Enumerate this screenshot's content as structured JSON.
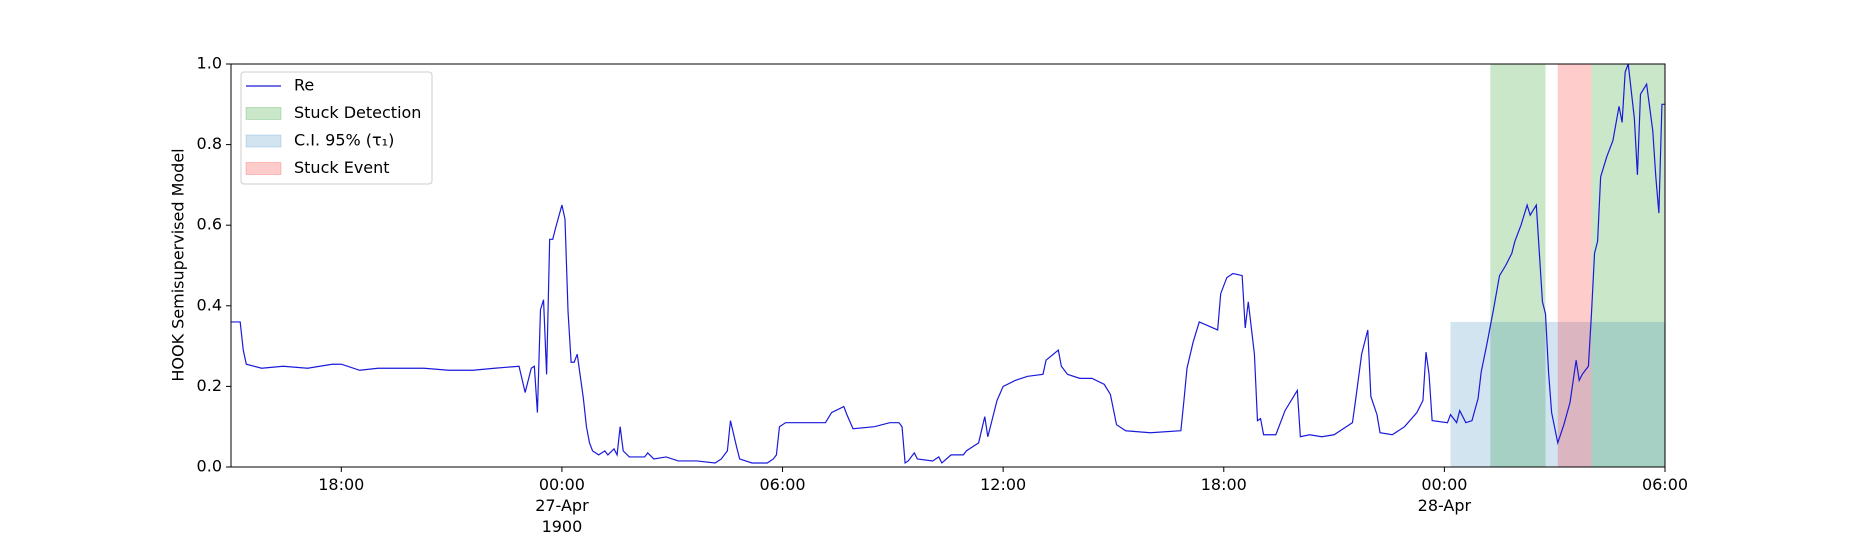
{
  "chart_data": {
    "type": "line",
    "y_label": "HOOK Semisupervised Model",
    "xlim": [
      "1900-04-26 15:00",
      "1900-04-28 06:00"
    ],
    "ylim": [
      0,
      1
    ],
    "xticks": [
      {
        "value": "1900-04-26 18:00",
        "label": "18:00"
      },
      {
        "value": "1900-04-27 00:00",
        "label": "00:00\n27-Apr\n1900"
      },
      {
        "value": "1900-04-27 06:00",
        "label": "06:00"
      },
      {
        "value": "1900-04-27 12:00",
        "label": "12:00"
      },
      {
        "value": "1900-04-27 18:00",
        "label": "18:00"
      },
      {
        "value": "1900-04-28 00:00",
        "label": "00:00\n28-Apr"
      },
      {
        "value": "1900-04-28 06:00",
        "label": "06:00"
      }
    ],
    "yticks": [
      {
        "value": 0,
        "label": "0.0"
      },
      0.2,
      0.4,
      0.6,
      0.8,
      {
        "value": 1,
        "label": "1.0"
      }
    ],
    "legend": "upper left",
    "x": [
      "1900-04-26 15:00",
      "1900-04-26 15:15",
      "1900-04-26 15:20",
      "1900-04-26 15:25",
      "1900-04-26 15:50",
      "1900-04-26 16:25",
      "1900-04-26 17:05",
      "1900-04-26 17:45",
      "1900-04-26 18:00",
      "1900-04-26 18:30",
      "1900-04-26 19:00",
      "1900-04-26 19:40",
      "1900-04-26 20:15",
      "1900-04-26 20:55",
      "1900-04-26 21:35",
      "1900-04-26 22:10",
      "1900-04-26 22:50",
      "1900-04-26 23:00",
      "1900-04-26 23:10",
      "1900-04-26 23:15",
      "1900-04-26 23:20",
      "1900-04-26 23:25",
      "1900-04-26 23:30",
      "1900-04-26 23:35",
      "1900-04-26 23:40",
      "1900-04-26 23:45",
      "1900-04-26 23:50",
      "1900-04-27 00:00",
      "1900-04-27 00:05",
      "1900-04-27 00:10",
      "1900-04-27 00:15",
      "1900-04-27 00:20",
      "1900-04-27 00:25",
      "1900-04-27 00:35",
      "1900-04-27 00:40",
      "1900-04-27 00:45",
      "1900-04-27 00:50",
      "1900-04-27 01:00",
      "1900-04-27 01:10",
      "1900-04-27 01:15",
      "1900-04-27 01:25",
      "1900-04-27 01:30",
      "1900-04-27 01:35",
      "1900-04-27 01:40",
      "1900-04-27 01:50",
      "1900-04-27 02:15",
      "1900-04-27 02:20",
      "1900-04-27 02:30",
      "1900-04-27 02:50",
      "1900-04-27 03:10",
      "1900-04-27 03:40",
      "1900-04-27 04:10",
      "1900-04-27 04:20",
      "1900-04-27 04:30",
      "1900-04-27 04:35",
      "1900-04-27 04:45",
      "1900-04-27 04:50",
      "1900-04-27 05:10",
      "1900-04-27 05:35",
      "1900-04-27 05:45",
      "1900-04-27 05:50",
      "1900-04-27 05:55",
      "1900-04-27 06:05",
      "1900-04-27 06:35",
      "1900-04-27 07:10",
      "1900-04-27 07:20",
      "1900-04-27 07:40",
      "1900-04-27 07:45",
      "1900-04-27 07:55",
      "1900-04-27 08:30",
      "1900-04-27 08:55",
      "1900-04-27 09:10",
      "1900-04-27 09:15",
      "1900-04-27 09:20",
      "1900-04-27 09:25",
      "1900-04-27 09:35",
      "1900-04-27 09:40",
      "1900-04-27 10:05",
      "1900-04-27 10:15",
      "1900-04-27 10:20",
      "1900-04-27 10:35",
      "1900-04-27 10:55",
      "1900-04-27 11:00",
      "1900-04-27 11:20",
      "1900-04-27 11:30",
      "1900-04-27 11:35",
      "1900-04-27 11:50",
      "1900-04-27 12:00",
      "1900-04-27 12:20",
      "1900-04-27 12:40",
      "1900-04-27 13:05",
      "1900-04-27 13:10",
      "1900-04-27 13:30",
      "1900-04-27 13:35",
      "1900-04-27 13:45",
      "1900-04-27 14:05",
      "1900-04-27 14:25",
      "1900-04-27 14:45",
      "1900-04-27 14:55",
      "1900-04-27 15:05",
      "1900-04-27 15:20",
      "1900-04-27 16:00",
      "1900-04-27 16:50",
      "1900-04-27 16:55",
      "1900-04-27 17:00",
      "1900-04-27 17:10",
      "1900-04-27 17:20",
      "1900-04-27 17:50",
      "1900-04-27 17:55",
      "1900-04-27 18:05",
      "1900-04-27 18:15",
      "1900-04-27 18:30",
      "1900-04-27 18:35",
      "1900-04-27 18:40",
      "1900-04-27 18:50",
      "1900-04-27 18:55",
      "1900-04-27 19:00",
      "1900-04-27 19:05",
      "1900-04-27 19:25",
      "1900-04-27 19:40",
      "1900-04-27 20:00",
      "1900-04-27 20:05",
      "1900-04-27 20:20",
      "1900-04-27 20:40",
      "1900-04-27 21:00",
      "1900-04-27 21:10",
      "1900-04-27 21:30",
      "1900-04-27 21:35",
      "1900-04-27 21:45",
      "1900-04-27 21:55",
      "1900-04-27 22:00",
      "1900-04-27 22:10",
      "1900-04-27 22:15",
      "1900-04-27 22:35",
      "1900-04-27 22:55",
      "1900-04-27 23:15",
      "1900-04-27 23:25",
      "1900-04-27 23:30",
      "1900-04-27 23:35",
      "1900-04-27 23:40",
      "1900-04-28 00:05",
      "1900-04-28 00:10",
      "1900-04-28 00:20",
      "1900-04-28 00:25",
      "1900-04-28 00:35",
      "1900-04-28 00:45",
      "1900-04-28 00:55",
      "1900-04-28 01:00",
      "1900-04-28 01:10",
      "1900-04-28 01:20",
      "1900-04-28 01:30",
      "1900-04-28 01:40",
      "1900-04-28 01:50",
      "1900-04-28 01:55",
      "1900-04-28 02:05",
      "1900-04-28 02:15",
      "1900-04-28 02:20",
      "1900-04-28 02:30",
      "1900-04-28 02:40",
      "1900-04-28 02:45",
      "1900-04-28 02:50",
      "1900-04-28 02:55",
      "1900-04-28 03:05",
      "1900-04-28 03:15",
      "1900-04-28 03:25",
      "1900-04-28 03:35",
      "1900-04-28 03:40",
      "1900-04-28 03:45",
      "1900-04-28 03:55",
      "1900-04-28 04:00",
      "1900-04-28 04:05",
      "1900-04-28 04:10",
      "1900-04-28 04:15",
      "1900-04-28 04:25",
      "1900-04-28 04:35",
      "1900-04-28 04:45",
      "1900-04-28 04:50",
      "1900-04-28 04:55",
      "1900-04-28 05:00",
      "1900-04-28 05:10",
      "1900-04-28 05:15",
      "1900-04-28 05:20",
      "1900-04-28 05:30",
      "1900-04-28 05:40",
      "1900-04-28 05:45",
      "1900-04-28 05:50",
      "1900-04-28 05:55",
      "1900-04-28 06:00"
    ],
    "series": [
      {
        "name": "Re",
        "color": "#1a1adb",
        "values": [
          0.36,
          0.36,
          0.29,
          0.255,
          0.245,
          0.25,
          0.245,
          0.255,
          0.255,
          0.24,
          0.245,
          0.245,
          0.245,
          0.24,
          0.24,
          0.245,
          0.25,
          0.185,
          0.245,
          0.25,
          0.135,
          0.39,
          0.415,
          0.23,
          0.565,
          0.565,
          0.595,
          0.65,
          0.615,
          0.385,
          0.26,
          0.26,
          0.28,
          0.17,
          0.1,
          0.06,
          0.04,
          0.03,
          0.04,
          0.03,
          0.045,
          0.03,
          0.1,
          0.04,
          0.025,
          0.025,
          0.035,
          0.02,
          0.025,
          0.015,
          0.015,
          0.01,
          0.02,
          0.04,
          0.115,
          0.05,
          0.02,
          0.01,
          0.01,
          0.02,
          0.03,
          0.1,
          0.11,
          0.11,
          0.11,
          0.135,
          0.15,
          0.13,
          0.095,
          0.1,
          0.11,
          0.11,
          0.1,
          0.01,
          0.015,
          0.035,
          0.02,
          0.015,
          0.025,
          0.01,
          0.03,
          0.03,
          0.04,
          0.06,
          0.125,
          0.075,
          0.165,
          0.2,
          0.215,
          0.225,
          0.23,
          0.265,
          0.29,
          0.25,
          0.23,
          0.22,
          0.22,
          0.205,
          0.18,
          0.105,
          0.09,
          0.085,
          0.09,
          0.165,
          0.245,
          0.31,
          0.36,
          0.34,
          0.43,
          0.47,
          0.48,
          0.475,
          0.345,
          0.41,
          0.28,
          0.115,
          0.12,
          0.08,
          0.08,
          0.14,
          0.19,
          0.075,
          0.08,
          0.075,
          0.08,
          0.09,
          0.11,
          0.165,
          0.28,
          0.34,
          0.175,
          0.13,
          0.085,
          0.08,
          0.1,
          0.135,
          0.165,
          0.285,
          0.23,
          0.115,
          0.11,
          0.13,
          0.11,
          0.14,
          0.11,
          0.115,
          0.17,
          0.235,
          0.31,
          0.39,
          0.475,
          0.5,
          0.53,
          0.56,
          0.6,
          0.65,
          0.625,
          0.65,
          0.41,
          0.38,
          0.235,
          0.135,
          0.06,
          0.105,
          0.16,
          0.265,
          0.215,
          0.23,
          0.25,
          0.38,
          0.53,
          0.56,
          0.72,
          0.77,
          0.81,
          0.895,
          0.855,
          0.98,
          1.0,
          0.865,
          0.725,
          0.925,
          0.95,
          0.835,
          0.72,
          0.63,
          0.9,
          0.9
        ]
      }
    ],
    "spans": [
      {
        "name": "Stuck Detection",
        "color": "#2ca02c",
        "alpha": 0.25,
        "x": [
          [
            "1900-04-28 01:15",
            "1900-04-28 02:45"
          ],
          [
            "1900-04-28 04:00",
            "1900-04-28 06:00"
          ]
        ]
      },
      {
        "name": "C.I. 95% (τ₁)",
        "color": "#1f77b4",
        "alpha": 0.2,
        "x": [
          [
            "1900-04-28 00:10",
            "1900-04-28 06:00"
          ]
        ],
        "y": [
          0,
          0.36
        ]
      },
      {
        "name": "Stuck Event",
        "color": "#ff0000",
        "alpha": 0.2,
        "x": [
          [
            "1900-04-28 03:05",
            "1900-04-28 04:00"
          ]
        ]
      }
    ]
  }
}
